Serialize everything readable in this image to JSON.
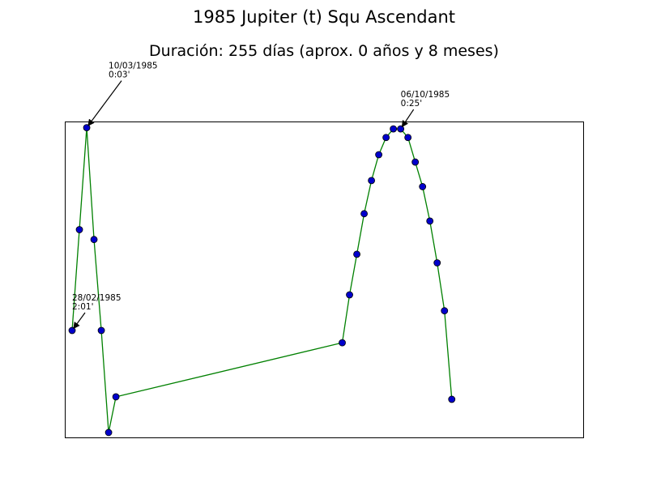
{
  "chart_data": {
    "type": "line",
    "title": "1985 Jupiter (t) Squ Ascendant",
    "subtitle": "Duración: 255 días (aprox. 0 años y 8 meses)",
    "xlabel": "",
    "ylabel": "",
    "grid": false,
    "axes_visible": false,
    "xlim": [
      0,
      71
    ],
    "ylim": [
      -0.07,
      2.5
    ],
    "colors": {
      "line": "#008000",
      "marker_fill": "#0000cc",
      "marker_edge": "#000000"
    },
    "series": [
      {
        "x": [
          1,
          2,
          3,
          4,
          5,
          6,
          7,
          38,
          39,
          40,
          41,
          42,
          43,
          44,
          45,
          46,
          47,
          48,
          49,
          50,
          51,
          52,
          53
        ],
        "y": [
          0.8,
          1.62,
          2.45,
          1.54,
          0.8,
          -0.03,
          0.26,
          0.7,
          1.09,
          1.42,
          1.75,
          2.02,
          2.23,
          2.37,
          2.44,
          2.44,
          2.37,
          2.17,
          1.97,
          1.69,
          1.35,
          0.96,
          0.24
        ]
      }
    ],
    "annotations": [
      {
        "date": "28/02/1985",
        "value": "2:01'",
        "x": 1,
        "y": 0.8
      },
      {
        "date": "10/03/1985",
        "value": "0:03'",
        "x": 3,
        "y": 2.45
      },
      {
        "date": "06/10/1985",
        "value": "0:25'",
        "x": 46,
        "y": 2.44
      }
    ]
  }
}
